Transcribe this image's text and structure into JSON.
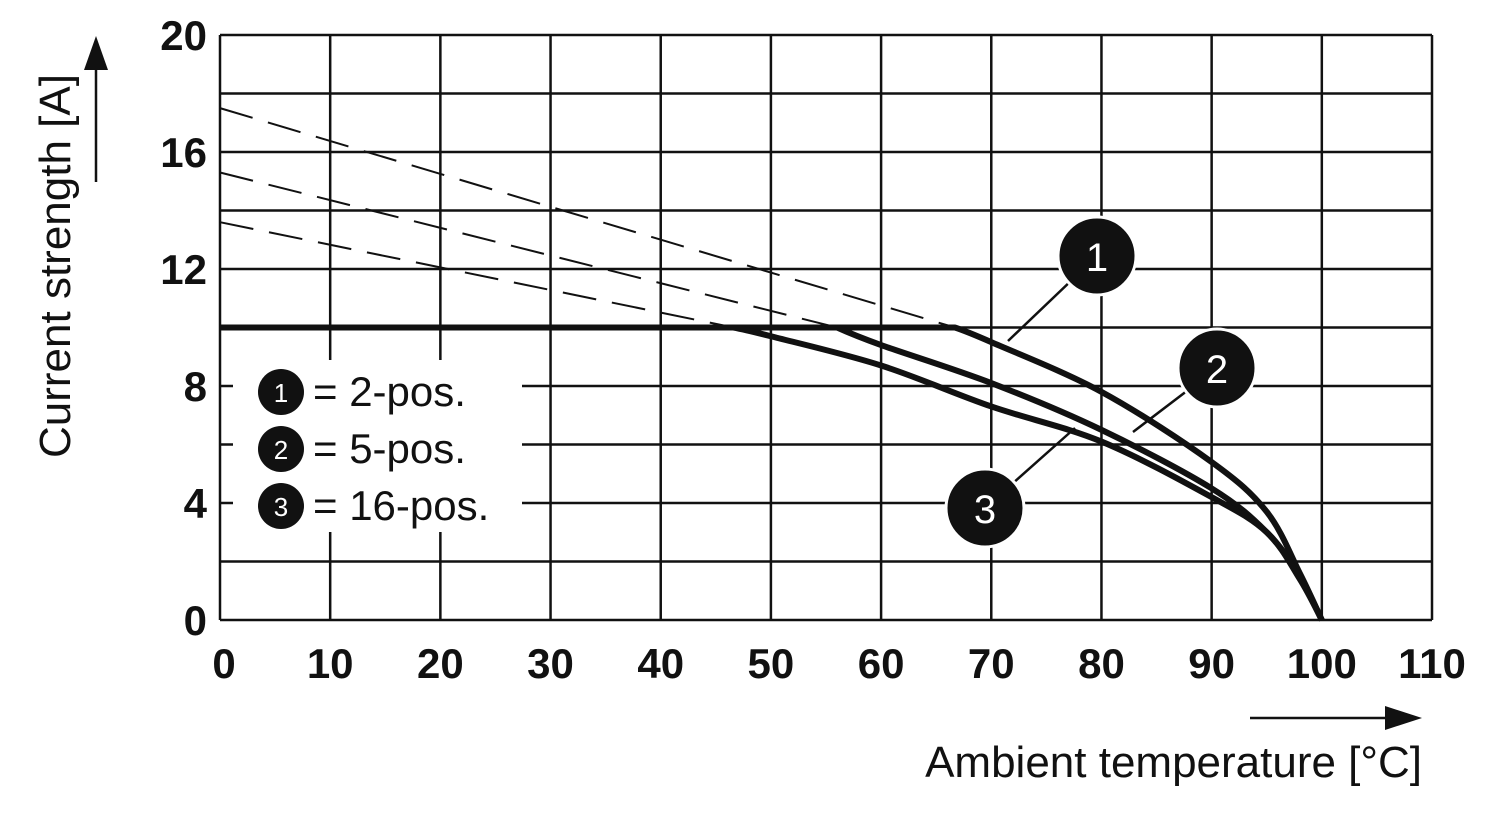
{
  "chart_data": {
    "type": "line",
    "title": "",
    "xlabel": "Ambient temperature [°C]",
    "ylabel": "Current strength [A]",
    "xlim": [
      0,
      110
    ],
    "ylim": [
      0,
      20
    ],
    "x_ticks": [
      "0",
      "10",
      "20",
      "30",
      "40",
      "50",
      "60",
      "70",
      "80",
      "90",
      "100",
      "110"
    ],
    "y_ticks": [
      "0",
      "4",
      "8",
      "12",
      "16",
      "20"
    ],
    "grid": true,
    "legend_placement": "center-left",
    "series": [
      {
        "id": "1",
        "name": "= 2-pos.",
        "points": [
          [
            0,
            10
          ],
          [
            66.7,
            10
          ],
          [
            70,
            9.5
          ],
          [
            80,
            7.8
          ],
          [
            90,
            5.4
          ],
          [
            95,
            3.7
          ],
          [
            98,
            1.6
          ],
          [
            100,
            0
          ]
        ],
        "dashed": [
          [
            0,
            17.5
          ],
          [
            66.7,
            10
          ]
        ]
      },
      {
        "id": "2",
        "name": "= 5-pos.",
        "points": [
          [
            0,
            10
          ],
          [
            56,
            10
          ],
          [
            60,
            9.4
          ],
          [
            70,
            8.1
          ],
          [
            80,
            6.5
          ],
          [
            90,
            4.5
          ],
          [
            95,
            3.0
          ],
          [
            98,
            1.5
          ],
          [
            100,
            0
          ]
        ],
        "dashed": [
          [
            0,
            15.3
          ],
          [
            56,
            10
          ]
        ]
      },
      {
        "id": "3",
        "name": "= 16-pos.",
        "points": [
          [
            0,
            10
          ],
          [
            46.6,
            10
          ],
          [
            50,
            9.7
          ],
          [
            60,
            8.7
          ],
          [
            70,
            7.3
          ],
          [
            80,
            6.1
          ],
          [
            90,
            4.2
          ],
          [
            95,
            3.0
          ],
          [
            98,
            1.4
          ],
          [
            100,
            0
          ]
        ],
        "dashed": [
          [
            0,
            13.6
          ],
          [
            46.6,
            10
          ]
        ]
      }
    ],
    "color": "#111111"
  }
}
